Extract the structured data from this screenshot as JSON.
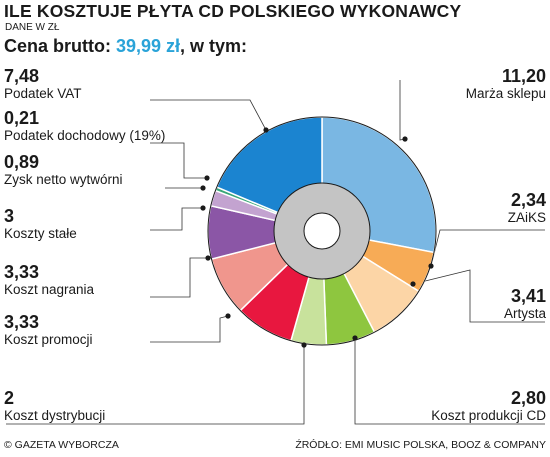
{
  "header": {
    "title": "ILE KOSZTUJE PŁYTA CD POLSKIEGO WYKONAWCY",
    "subtitle": "DANE W ZŁ",
    "price_prefix": "Cena brutto: ",
    "price_value": "39,99 zł",
    "price_suffix": ", w tym:"
  },
  "footer": {
    "left": "© GAZETA WYBORCZA",
    "right": "ŹRÓDŁO: EMI MUSIC POLSKA, BOOZ & COMPANY"
  },
  "chart_data": {
    "type": "pie",
    "title": "ILE KOSZTUJE PŁYTA CD POLSKIEGO WYKONAWCY",
    "subtitle": "DANE W ZŁ",
    "total": 39.99,
    "unit": "zł",
    "slices": [
      {
        "label": "Marża sklepu",
        "value_text": "11,20",
        "value": 11.2,
        "color": "#7ab7e3"
      },
      {
        "label": "ZAiKS",
        "value_text": "2,34",
        "value": 2.34,
        "color": "#f7ab56"
      },
      {
        "label": "Artysta",
        "value_text": "3,41",
        "value": 3.41,
        "color": "#fcd5a6"
      },
      {
        "label": "Koszt produkcji CD",
        "value_text": "2,80",
        "value": 2.8,
        "color": "#8ec63f"
      },
      {
        "label": "Koszt dystrybucji",
        "value_text": "2",
        "value": 2.0,
        "color": "#c8e29c"
      },
      {
        "label": "Koszt promocji",
        "value_text": "3,33",
        "value": 3.33,
        "color": "#e8173f"
      },
      {
        "label": "Koszt nagrania",
        "value_text": "3,33",
        "value": 3.33,
        "color": "#f0968d"
      },
      {
        "label": "Koszty stałe",
        "value_text": "3",
        "value": 3.0,
        "color": "#8b56a6"
      },
      {
        "label": "Zysk netto wytwórni",
        "value_text": "0,89",
        "value": 0.89,
        "color": "#c3a3d0"
      },
      {
        "label": "Podatek dochodowy (19%)",
        "value_text": "0,21",
        "value": 0.21,
        "color": "#39a678"
      },
      {
        "label": "Podatek VAT",
        "value_text": "7,48",
        "value": 7.48,
        "color": "#1b84d0"
      }
    ]
  }
}
